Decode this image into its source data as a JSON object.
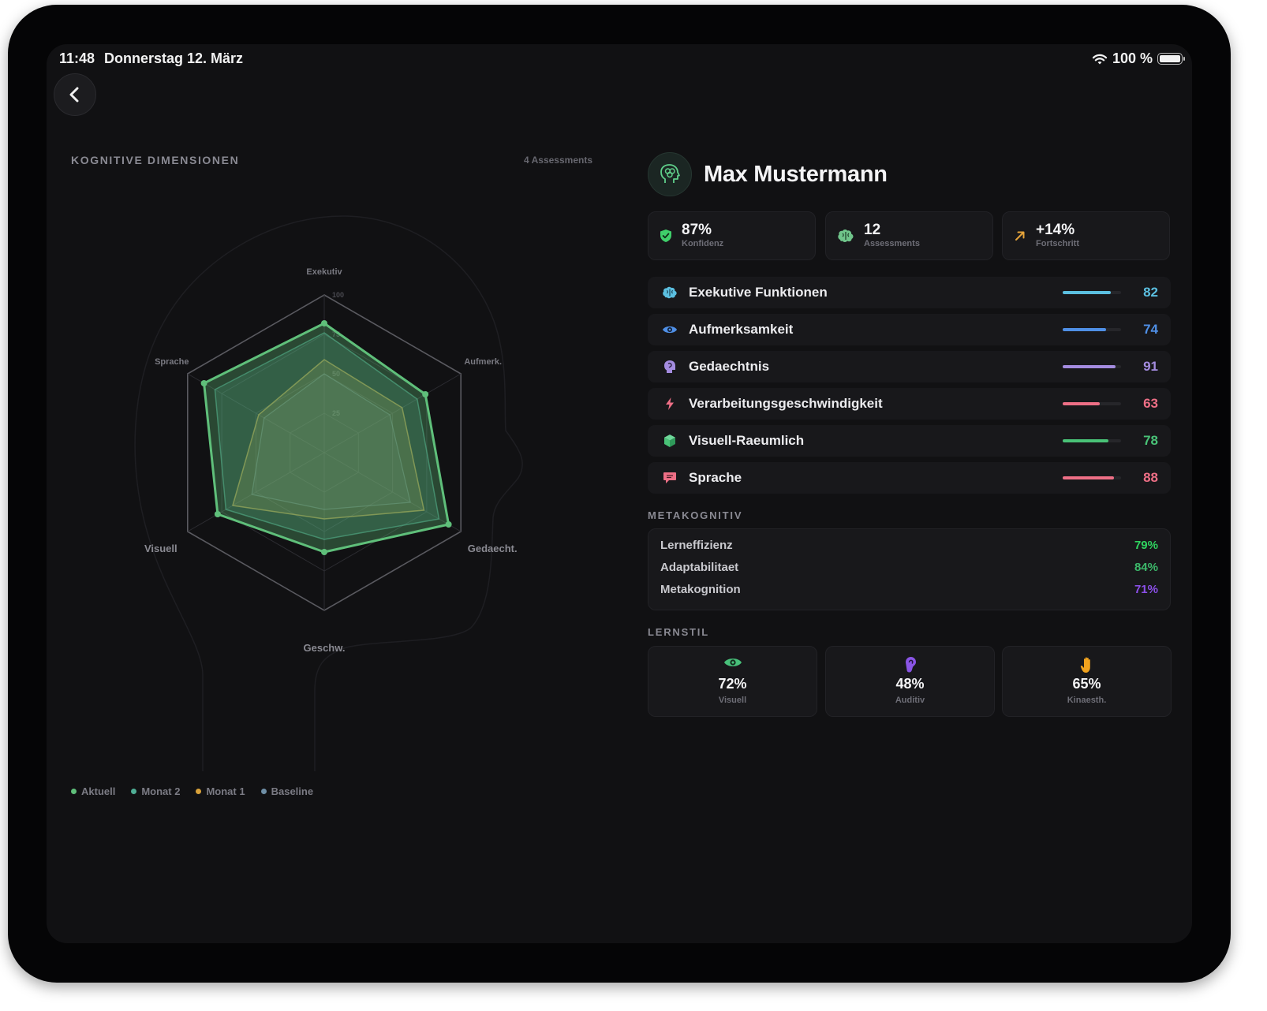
{
  "status_bar": {
    "time": "11:48",
    "date": "Donnerstag 12. März",
    "battery": "100 %"
  },
  "left": {
    "section_title": "KOGNITIVE DIMENSIONEN",
    "assessment_count": "4 Assessments"
  },
  "chart_data": {
    "type": "radar",
    "axes": [
      "Exekutiv",
      "Aufmerk.",
      "Gedaecht.",
      "Geschw.",
      "Visuell",
      "Sprache"
    ],
    "rings": [
      25,
      50,
      75,
      100
    ],
    "ring_labels": [
      "25",
      "50",
      "75",
      "100"
    ],
    "range": [
      0,
      100
    ],
    "series": [
      {
        "name": "Aktuell",
        "color": "#5fbf7a",
        "values": [
          82,
          74,
          91,
          63,
          78,
          88
        ]
      },
      {
        "name": "Monat 2",
        "color": "#4fae95",
        "values": [
          76,
          68,
          84,
          55,
          72,
          80
        ]
      },
      {
        "name": "Monat 1",
        "color": "#d9a23a",
        "values": [
          59,
          57,
          73,
          42,
          67,
          48
        ]
      },
      {
        "name": "Baseline",
        "color": "#6f8fa6",
        "values": [
          50,
          48,
          63,
          36,
          53,
          44
        ]
      }
    ],
    "legend": [
      "Aktuell",
      "Monat 2",
      "Monat 1",
      "Baseline"
    ],
    "legend_position": "bottom-left"
  },
  "profile": {
    "name": "Max Mustermann",
    "avatar_icon": "head-brain-icon"
  },
  "stats": [
    {
      "value": "87%",
      "label": "Konfidenz",
      "icon": "shield-check-icon",
      "color": "#3fcf6a"
    },
    {
      "value": "12",
      "label": "Assessments",
      "icon": "brain-icon",
      "color": "#6fc48a"
    },
    {
      "value": "+14%",
      "label": "Fortschritt",
      "icon": "arrow-up-right-icon",
      "color": "#e5a33a"
    }
  ],
  "dimensions": [
    {
      "label": "Exekutive Funktionen",
      "value": "82",
      "level": 0.82,
      "color": "#5bbfe0",
      "icon": "brain-icon"
    },
    {
      "label": "Aufmerksamkeit",
      "value": "74",
      "level": 0.74,
      "color": "#4f8fe6",
      "icon": "eye-icon"
    },
    {
      "label": "Gedaechtnis",
      "value": "91",
      "level": 0.91,
      "color": "#a48ce0",
      "icon": "head-icon"
    },
    {
      "label": "Verarbeitungsgeschwindigkeit",
      "value": "63",
      "level": 0.63,
      "color": "#ee6f86",
      "icon": "bolt-icon"
    },
    {
      "label": "Visuell-Raeumlich",
      "value": "78",
      "level": 0.78,
      "color": "#49c277",
      "icon": "cube-icon"
    },
    {
      "label": "Sprache",
      "value": "88",
      "level": 0.88,
      "color": "#ee6f86",
      "icon": "speech-bubble-icon"
    }
  ],
  "metakognitiv": {
    "title": "METAKOGNITIV",
    "items": [
      {
        "label": "Lerneffizienz",
        "value": "79%",
        "color": "#2fd35f"
      },
      {
        "label": "Adaptabilitaet",
        "value": "84%",
        "color": "#3cb86a"
      },
      {
        "label": "Metakognition",
        "value": "71%",
        "color": "#8b4fe8"
      }
    ]
  },
  "lernstil": {
    "title": "LERNSTIL",
    "items": [
      {
        "value": "72%",
        "label": "Visuell",
        "icon": "eye-icon",
        "color": "#48c07a"
      },
      {
        "value": "48%",
        "label": "Auditiv",
        "icon": "ear-icon",
        "color": "#8a55e6"
      },
      {
        "value": "65%",
        "label": "Kinaesth.",
        "icon": "hand-icon",
        "color": "#f0a21e"
      }
    ]
  }
}
